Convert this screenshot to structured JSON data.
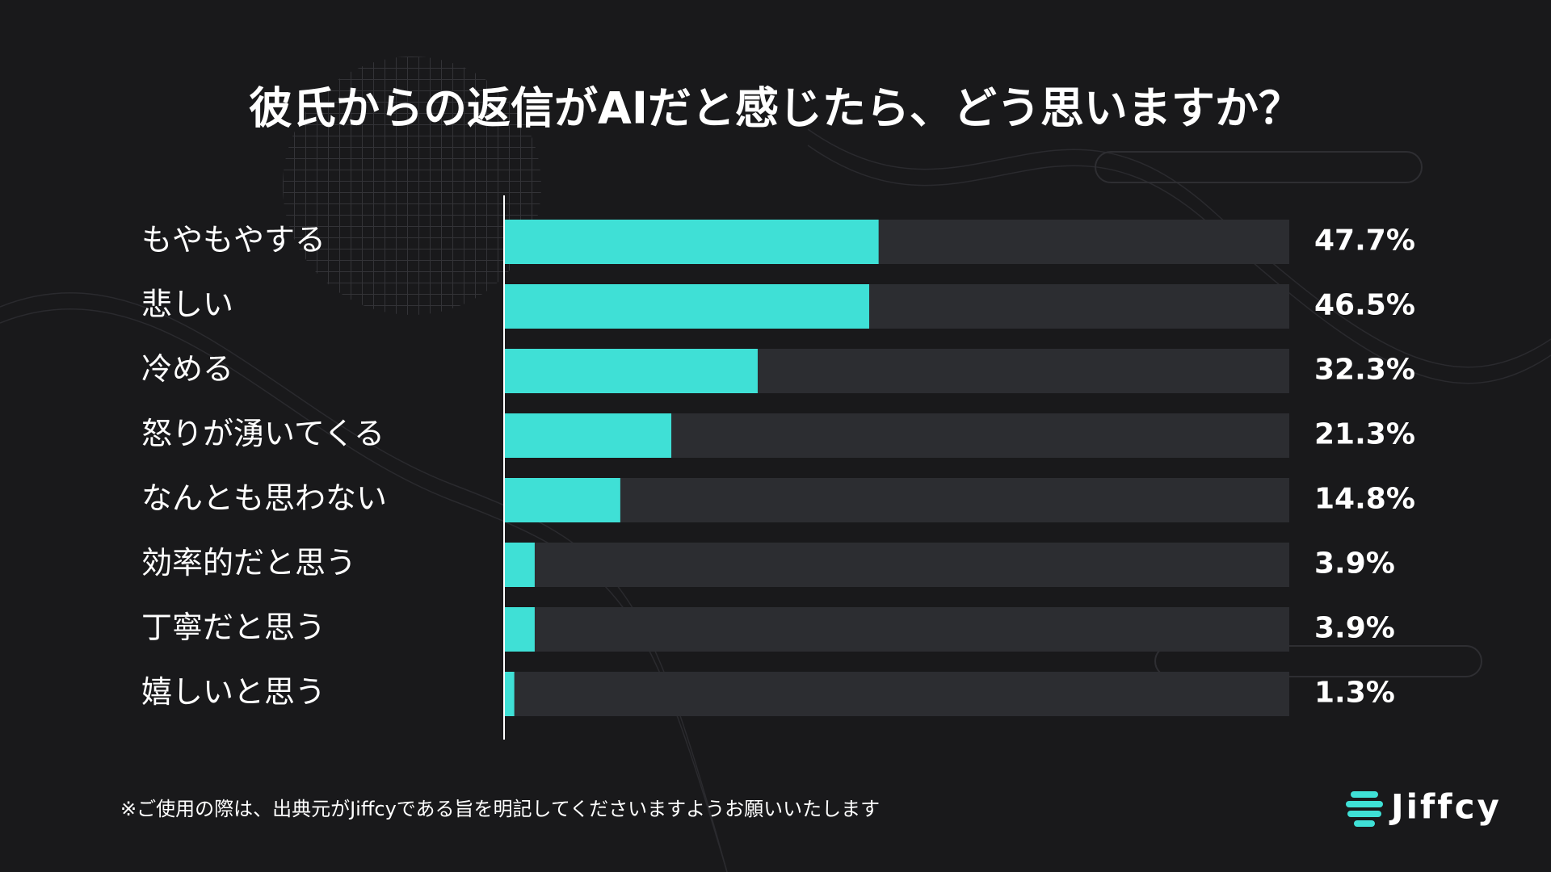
{
  "chart_data": {
    "type": "bar",
    "title": "彼氏からの返信がAIだと感じたら、どう思いますか？",
    "categories": [
      "もやもやする",
      "悲しい",
      "冷める",
      "怒りが湧いてくる",
      "なんとも思わない",
      "効率的だと思う",
      "丁寧だと思う",
      "嬉しいと思う"
    ],
    "values": [
      47.7,
      46.5,
      32.3,
      21.3,
      14.8,
      3.9,
      3.9,
      1.3
    ],
    "value_labels": [
      "47.7%",
      "46.5%",
      "32.3%",
      "21.3%",
      "14.8%",
      "3.9%",
      "3.9%",
      "1.3%"
    ],
    "color": "#3fe0d6",
    "track_color": "#2c2d31",
    "xlim": [
      0,
      100
    ]
  },
  "footer": {
    "note": "※ご使用の際は、出典元がJiffcyである旨を明記してくださいますようお願いいたします",
    "logo": "Jiffcy"
  }
}
